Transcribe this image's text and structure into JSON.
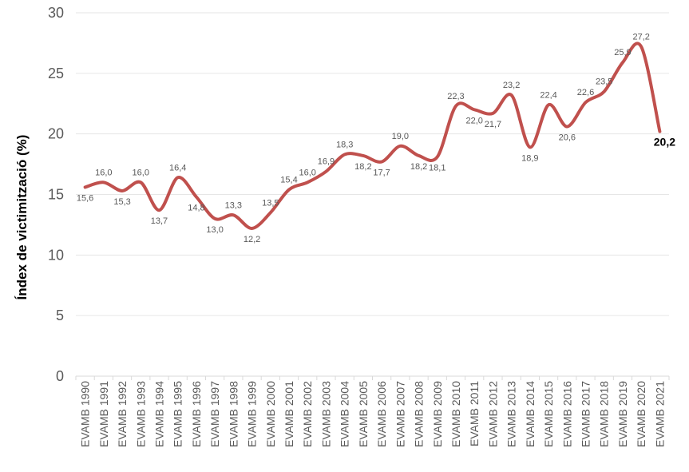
{
  "chart_data": {
    "type": "line",
    "ylabel": "Índex de victimització (%)",
    "ylim": [
      0,
      30
    ],
    "yticks": [
      "0",
      "5",
      "10",
      "15",
      "20",
      "25",
      "30"
    ],
    "grid": true,
    "categories": [
      "EVAMB 1990",
      "EVAMB 1991",
      "EVAMB 1992",
      "EVAMB 1993",
      "EVAMB 1994",
      "EVAMB 1995",
      "EVAMB 1996",
      "EVAMB 1997",
      "EVAMB 1998",
      "EVAMB 1999",
      "EVAMB 2000",
      "EVAMB 2001",
      "EVAMB 2002",
      "EVAMB 2003",
      "EVAMB 2004",
      "EVAMB 2005",
      "EVAMB 2006",
      "EVAMB 2007",
      "EVAMB 2008",
      "EVAMB 2009",
      "EVAMB 2010",
      "EVAMB 2011",
      "EVAMB 2012",
      "EVAMB 2013",
      "EVAMB 2014",
      "EVAMB 2015",
      "EVAMB 2016",
      "EVAMB 2017",
      "EVAMB 2018",
      "EVAMB 2019",
      "EVAMB 2020",
      "EVAMB 2021"
    ],
    "values": [
      15.6,
      16.0,
      15.3,
      16.0,
      13.7,
      16.4,
      14.8,
      13.0,
      13.3,
      12.2,
      13.5,
      15.4,
      16.0,
      16.9,
      18.3,
      18.2,
      17.7,
      19.0,
      18.2,
      18.1,
      22.3,
      22.0,
      21.7,
      23.2,
      18.9,
      22.4,
      20.6,
      22.6,
      23.5,
      25.9,
      27.2,
      20.2
    ],
    "data_labels": [
      "15,6",
      "16,0",
      "15,3",
      "16,0",
      "13,7",
      "16,4",
      "14,8",
      "13,0",
      "13,3",
      "12,2",
      "13,5",
      "15,4",
      "16,0",
      "16,9",
      "18,3",
      "18,2",
      "17,7",
      "19,0",
      "18,2",
      "18,1",
      "22,3",
      "22,0",
      "21,7",
      "23,2",
      "18,9",
      "22,4",
      "20,6",
      "22,6",
      "23,5",
      "25,9",
      "27,2",
      "20,2"
    ],
    "line_color": "#c0504d"
  }
}
